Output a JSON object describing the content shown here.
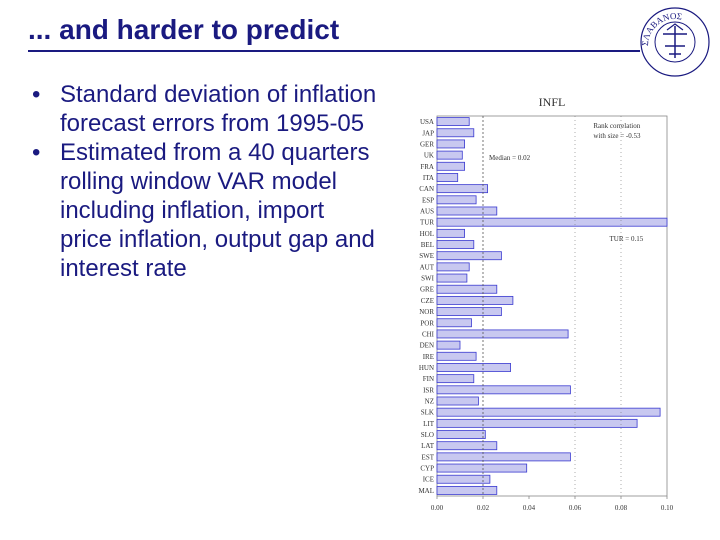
{
  "slide": {
    "title": "... and harder to predict",
    "bullets": [
      "Standard deviation of inflation forecast errors from 1995-05",
      "Estimated from a 40 quarters rolling window VAR model including inflation, import price inflation, output gap and interest rate"
    ],
    "logo_icon": "university-seal-icon",
    "logo_text": "ΣΛΑΒΑΝΟΣ"
  },
  "colors": {
    "title": "#1a1a80",
    "bar_fill": "#c8c8f0",
    "bar_stroke": "#3a3ad0"
  },
  "chart_data": {
    "type": "bar",
    "orientation": "horizontal",
    "title": "INFL",
    "categories": [
      "USA",
      "JAP",
      "GER",
      "UK",
      "FRA",
      "ITA",
      "CAN",
      "ESP",
      "AUS",
      "TUR",
      "HOL",
      "BEL",
      "SWE",
      "AUT",
      "SWI",
      "GRE",
      "CZE",
      "NOR",
      "POR",
      "CHI",
      "DEN",
      "IRE",
      "HUN",
      "FIN",
      "ISR",
      "NZ",
      "SLK",
      "LIT",
      "SLO",
      "LAT",
      "EST",
      "CYP",
      "ICE",
      "MAL"
    ],
    "values": [
      0.014,
      0.016,
      0.012,
      0.011,
      0.012,
      0.009,
      0.022,
      0.017,
      0.026,
      0.1,
      0.012,
      0.016,
      0.028,
      0.014,
      0.013,
      0.026,
      0.033,
      0.028,
      0.015,
      0.057,
      0.01,
      0.017,
      0.032,
      0.016,
      0.058,
      0.018,
      0.097,
      0.087,
      0.021,
      0.026,
      0.058,
      0.039,
      0.023,
      0.026
    ],
    "xlim": [
      0,
      0.1
    ],
    "x_ticks": [
      "0.00",
      "0.02",
      "0.04",
      "0.06",
      "0.08",
      "0.10"
    ],
    "median": 0.02,
    "annotations": {
      "median": "Median = 0.02",
      "rank": [
        "Rank correlation",
        "with size = -0.53"
      ],
      "tur": "TUR = 0.15"
    }
  }
}
